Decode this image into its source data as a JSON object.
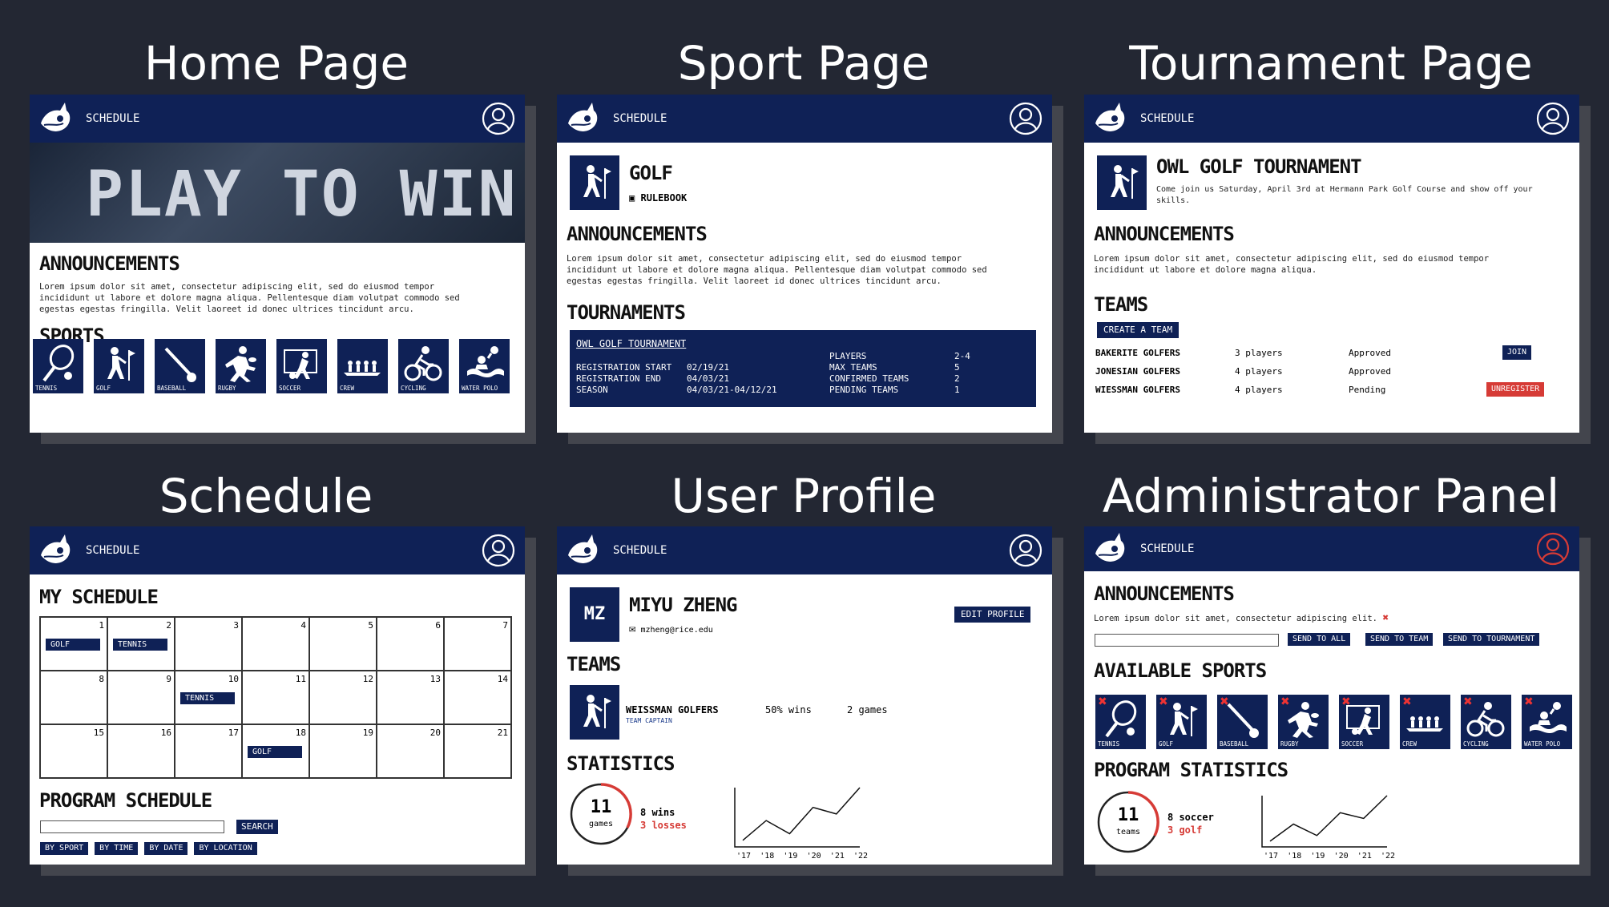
{
  "titles": {
    "home": "Home Page",
    "sport": "Sport Page",
    "tournament": "Tournament Page",
    "schedule": "Schedule",
    "profile": "User Profile",
    "admin": "Administrator Panel"
  },
  "nav": {
    "schedule": "SCHEDULE"
  },
  "colors": {
    "navy": "#0f2156",
    "background": "#232733",
    "danger": "#d63b36"
  },
  "home": {
    "banner": "PLAY TO WIN",
    "announcements_heading": "ANNOUNCEMENTS",
    "announcement_text": "Lorem ipsum dolor sit amet, consectetur adipiscing elit, sed do eiusmod tempor incididunt ut labore et dolore magna aliqua. Pellentesque diam volutpat commodo sed egestas egestas fringilla. Velit laoreet id donec ultrices tincidunt arcu.",
    "sports_heading": "SPORTS",
    "sports": [
      {
        "label": "TENNIS",
        "icon": "tennis-icon"
      },
      {
        "label": "GOLF",
        "icon": "golf-icon"
      },
      {
        "label": "BASEBALL",
        "icon": "baseball-icon"
      },
      {
        "label": "RUGBY",
        "icon": "rugby-icon"
      },
      {
        "label": "SOCCER",
        "icon": "soccer-icon"
      },
      {
        "label": "CREW",
        "icon": "crew-icon"
      },
      {
        "label": "CYCLING",
        "icon": "cycling-icon"
      },
      {
        "label": "WATER POLO",
        "icon": "water-polo-icon"
      }
    ]
  },
  "sport": {
    "name": "GOLF",
    "rulebook": "RULEBOOK",
    "announcements_heading": "ANNOUNCEMENTS",
    "announcement_text": "Lorem ipsum dolor sit amet, consectetur adipiscing elit, sed do eiusmod tempor incididunt ut labore et dolore magna aliqua. Pellentesque diam volutpat commodo sed egestas egestas fringilla. Velit laoreet id donec ultrices tincidunt arcu.",
    "tournaments_heading": "TOURNAMENTS",
    "tournament": {
      "name": "OWL GOLF TOURNAMENT",
      "reg_start_label": "REGISTRATION START",
      "reg_start": "02/19/21",
      "reg_end_label": "REGISTRATION END",
      "reg_end": "04/03/21",
      "season_label": "SEASON",
      "season": "04/03/21-04/12/21",
      "players_label": "PLAYERS",
      "players": "2-4",
      "max_teams_label": "MAX TEAMS",
      "max_teams": "5",
      "confirmed_label": "CONFIRMED TEAMS",
      "confirmed": "2",
      "pending_label": "PENDING TEAMS",
      "pending": "1"
    }
  },
  "tournament": {
    "name": "OWL GOLF TOURNAMENT",
    "description": "Come join us Saturday, April 3rd at Hermann Park Golf Course and show off your skills.",
    "announcements_heading": "ANNOUNCEMENTS",
    "announcement_text": "Lorem ipsum dolor sit amet, consectetur adipiscing elit, sed do eiusmod tempor incididunt ut labore et dolore magna aliqua.",
    "teams_heading": "TEAMS",
    "create_team": "CREATE A TEAM",
    "teams": [
      {
        "name": "BAKERITE GOLFERS",
        "players": "3 players",
        "status": "Approved",
        "action": "JOIN"
      },
      {
        "name": "JONESIAN GOLFERS",
        "players": "4 players",
        "status": "Approved",
        "action": ""
      },
      {
        "name": "WIESSMAN GOLFERS",
        "players": "4 players",
        "status": "Pending",
        "action": "UNREGISTER"
      }
    ]
  },
  "schedule": {
    "my_schedule_heading": "MY SCHEDULE",
    "days": [
      "1",
      "2",
      "3",
      "4",
      "5",
      "6",
      "7",
      "8",
      "9",
      "10",
      "11",
      "12",
      "13",
      "14",
      "15",
      "16",
      "17",
      "18",
      "19",
      "20",
      "21"
    ],
    "events": [
      {
        "day": "1",
        "label": "GOLF"
      },
      {
        "day": "2",
        "label": "TENNIS"
      },
      {
        "day": "10",
        "label": "TENNIS"
      },
      {
        "day": "18",
        "label": "GOLF"
      }
    ],
    "program_heading": "PROGRAM SCHEDULE",
    "search_btn": "SEARCH",
    "filters": [
      "BY SPORT",
      "BY TIME",
      "BY DATE",
      "BY LOCATION"
    ]
  },
  "profile": {
    "initials": "MZ",
    "name": "MIYU ZHENG",
    "email": "mzheng@rice.edu",
    "edit": "EDIT PROFILE",
    "teams_heading": "TEAMS",
    "team": {
      "name": "WEISSMAN GOLFERS",
      "role": "TEAM CAPTAIN",
      "wins": "50% wins",
      "games": "2 games"
    },
    "stats_heading": "STATISTICS",
    "games_count": "11",
    "games_label": "games",
    "wins": "8 wins",
    "losses": "3 losses",
    "chart_data": {
      "type": "line",
      "categories": [
        "'17",
        "'18",
        "'19",
        "'20",
        "'21",
        "'22"
      ],
      "values": [
        1,
        4,
        2,
        6,
        5,
        9
      ],
      "title": "",
      "xlabel": "",
      "ylabel": ""
    }
  },
  "admin": {
    "announcements_heading": "ANNOUNCEMENTS",
    "announcement_text": "Lorem ipsum dolor sit amet, consectetur adipiscing elit.",
    "send_all": "SEND TO ALL",
    "send_team": "SEND TO TEAM",
    "send_tournament": "SEND TO TOURNAMENT",
    "sports_heading": "AVAILABLE SPORTS",
    "stats_heading": "PROGRAM STATISTICS",
    "teams_count": "11",
    "teams_label": "teams",
    "soccer": "8 soccer",
    "golf": "3 golf",
    "chart_data": {
      "type": "line",
      "categories": [
        "'17",
        "'18",
        "'19",
        "'20",
        "'21",
        "'22"
      ],
      "values": [
        1,
        4,
        2,
        6,
        5,
        9
      ],
      "title": "",
      "xlabel": "",
      "ylabel": ""
    }
  }
}
